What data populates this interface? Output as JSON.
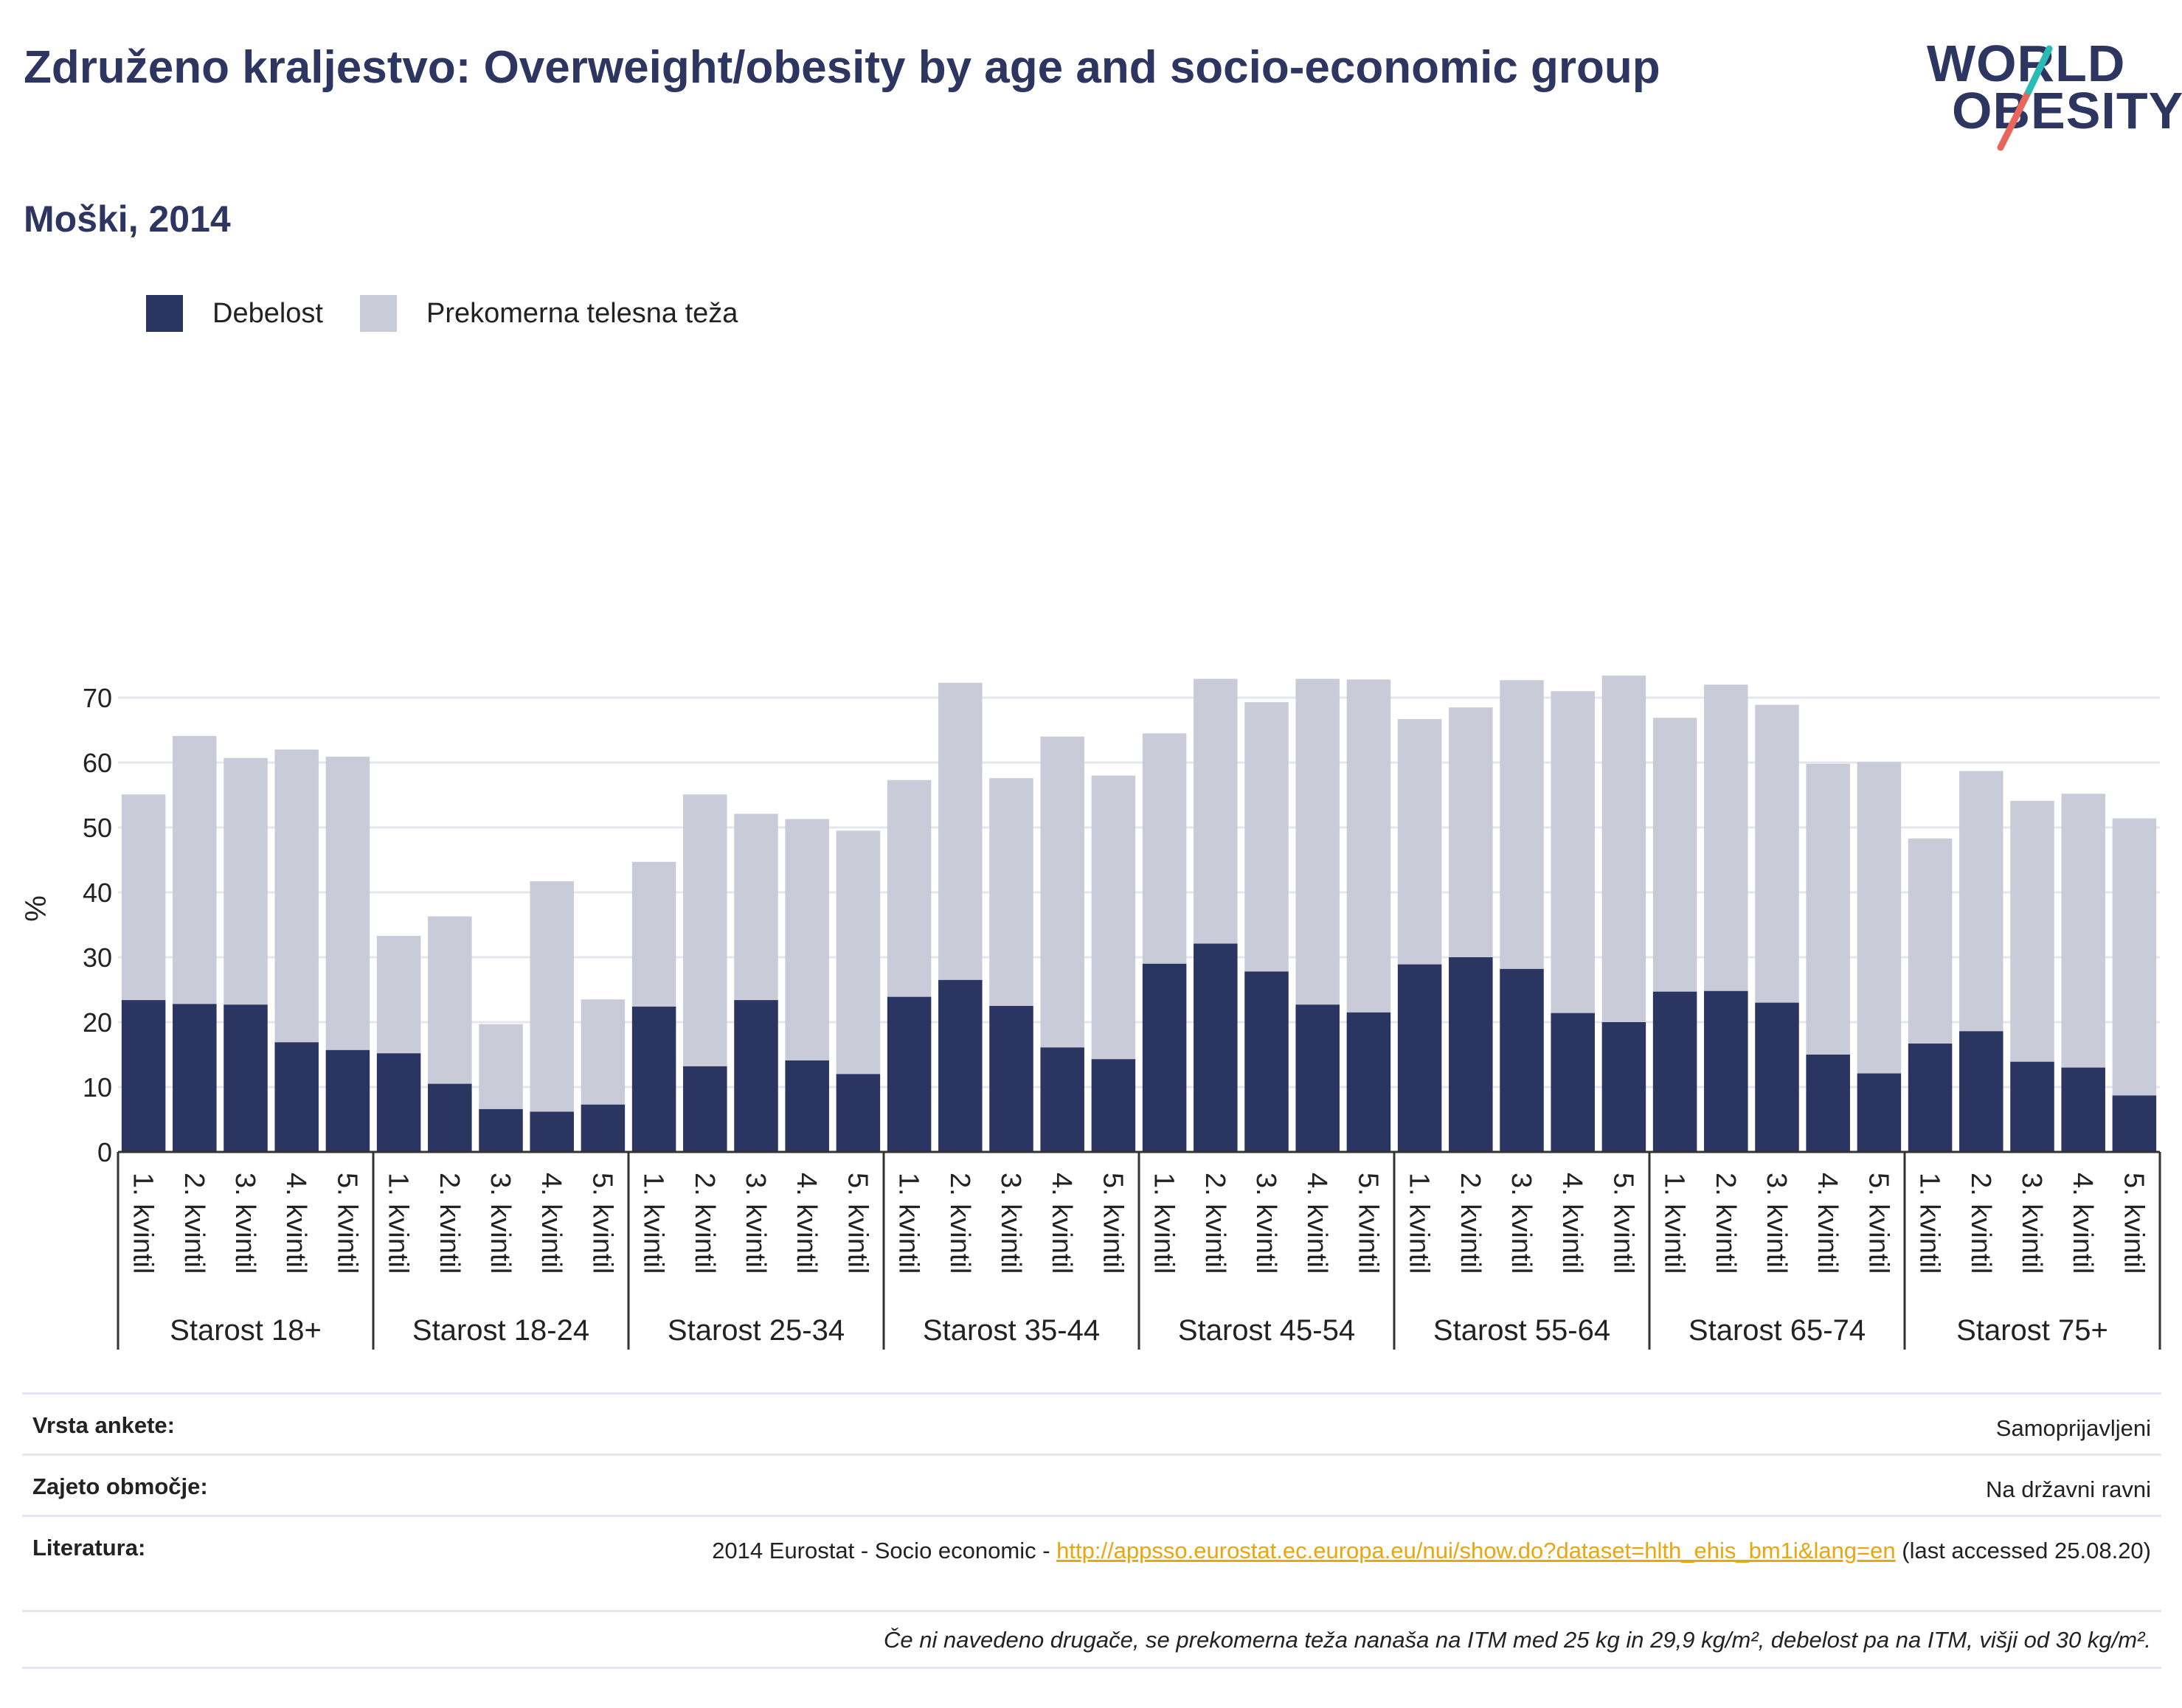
{
  "header": {
    "title": "Združeno kraljestvo: Overweight/obesity by age and socio-economic group",
    "subtitle": "Moški, 2014"
  },
  "logo": {
    "line1": "WORLD",
    "line2": "OBESITY"
  },
  "colors": {
    "obesity": "#2a3562",
    "overweight": "#c9cbd8",
    "title": "#2d3561",
    "link": "#e8a60f",
    "logo_slash_teal": "#2bbbb5",
    "logo_slash_red": "#e8665a"
  },
  "chart_data": {
    "type": "bar",
    "stacked": true,
    "ylabel": "%",
    "ylim": [
      0,
      75
    ],
    "yticks": [
      0,
      10,
      20,
      30,
      40,
      50,
      60,
      70
    ],
    "grid": true,
    "legend_position": "top-left",
    "groups": [
      "Starost 18+",
      "Starost 18-24",
      "Starost 25-34",
      "Starost 35-44",
      "Starost 45-54",
      "Starost 55-64",
      "Starost 65-74",
      "Starost 75+"
    ],
    "categories": [
      "1. kvintil",
      "2. kvintil",
      "3. kvintil",
      "4. kvintil",
      "5. kvintil"
    ],
    "series": [
      {
        "name": "Debelost",
        "values": [
          [
            23.4,
            22.8,
            22.7,
            16.9,
            15.7
          ],
          [
            15.2,
            10.5,
            6.6,
            6.2,
            7.3
          ],
          [
            22.4,
            13.2,
            23.4,
            14.1,
            12.0
          ],
          [
            23.9,
            26.5,
            22.5,
            16.1,
            14.3
          ],
          [
            29.0,
            32.1,
            27.8,
            22.7,
            21.5
          ],
          [
            28.9,
            30.0,
            28.2,
            21.4,
            20.0
          ],
          [
            24.7,
            24.8,
            23.0,
            15.0,
            12.1
          ],
          [
            16.7,
            18.6,
            13.9,
            13.0,
            8.7
          ]
        ]
      },
      {
        "name": "Prekomerna telesna teža",
        "values": [
          [
            31.7,
            41.3,
            38.0,
            45.1,
            45.2
          ],
          [
            18.1,
            25.8,
            13.1,
            35.5,
            16.2
          ],
          [
            22.3,
            41.9,
            28.7,
            37.2,
            37.5
          ],
          [
            33.4,
            45.8,
            35.1,
            47.9,
            43.7
          ],
          [
            35.5,
            40.8,
            41.5,
            50.2,
            51.3
          ],
          [
            37.8,
            38.5,
            44.5,
            49.6,
            53.4
          ],
          [
            42.2,
            47.2,
            45.9,
            44.8,
            48.0
          ],
          [
            31.6,
            40.1,
            40.2,
            42.2,
            42.7
          ]
        ]
      }
    ]
  },
  "info": {
    "survey_label": "Vrsta ankete:",
    "survey_value": "Samoprijavljeni",
    "coverage_label": "Zajeto območje:",
    "coverage_value": "Na državni ravni",
    "literature_label": "Literatura:",
    "literature_prefix": "2014 Eurostat - Socio economic - ",
    "literature_link": "http://appsso.eurostat.ec.europa.eu/nui/show.do?dataset=hlth_ehis_bm1i&lang=en",
    "literature_suffix": " (last accessed 25.08.20)",
    "note": "Če ni navedeno drugače, se prekomerna teža nanaša na ITM med 25 kg in 29,9 kg/m², debelost pa na ITM, višji od 30 kg/m²."
  }
}
